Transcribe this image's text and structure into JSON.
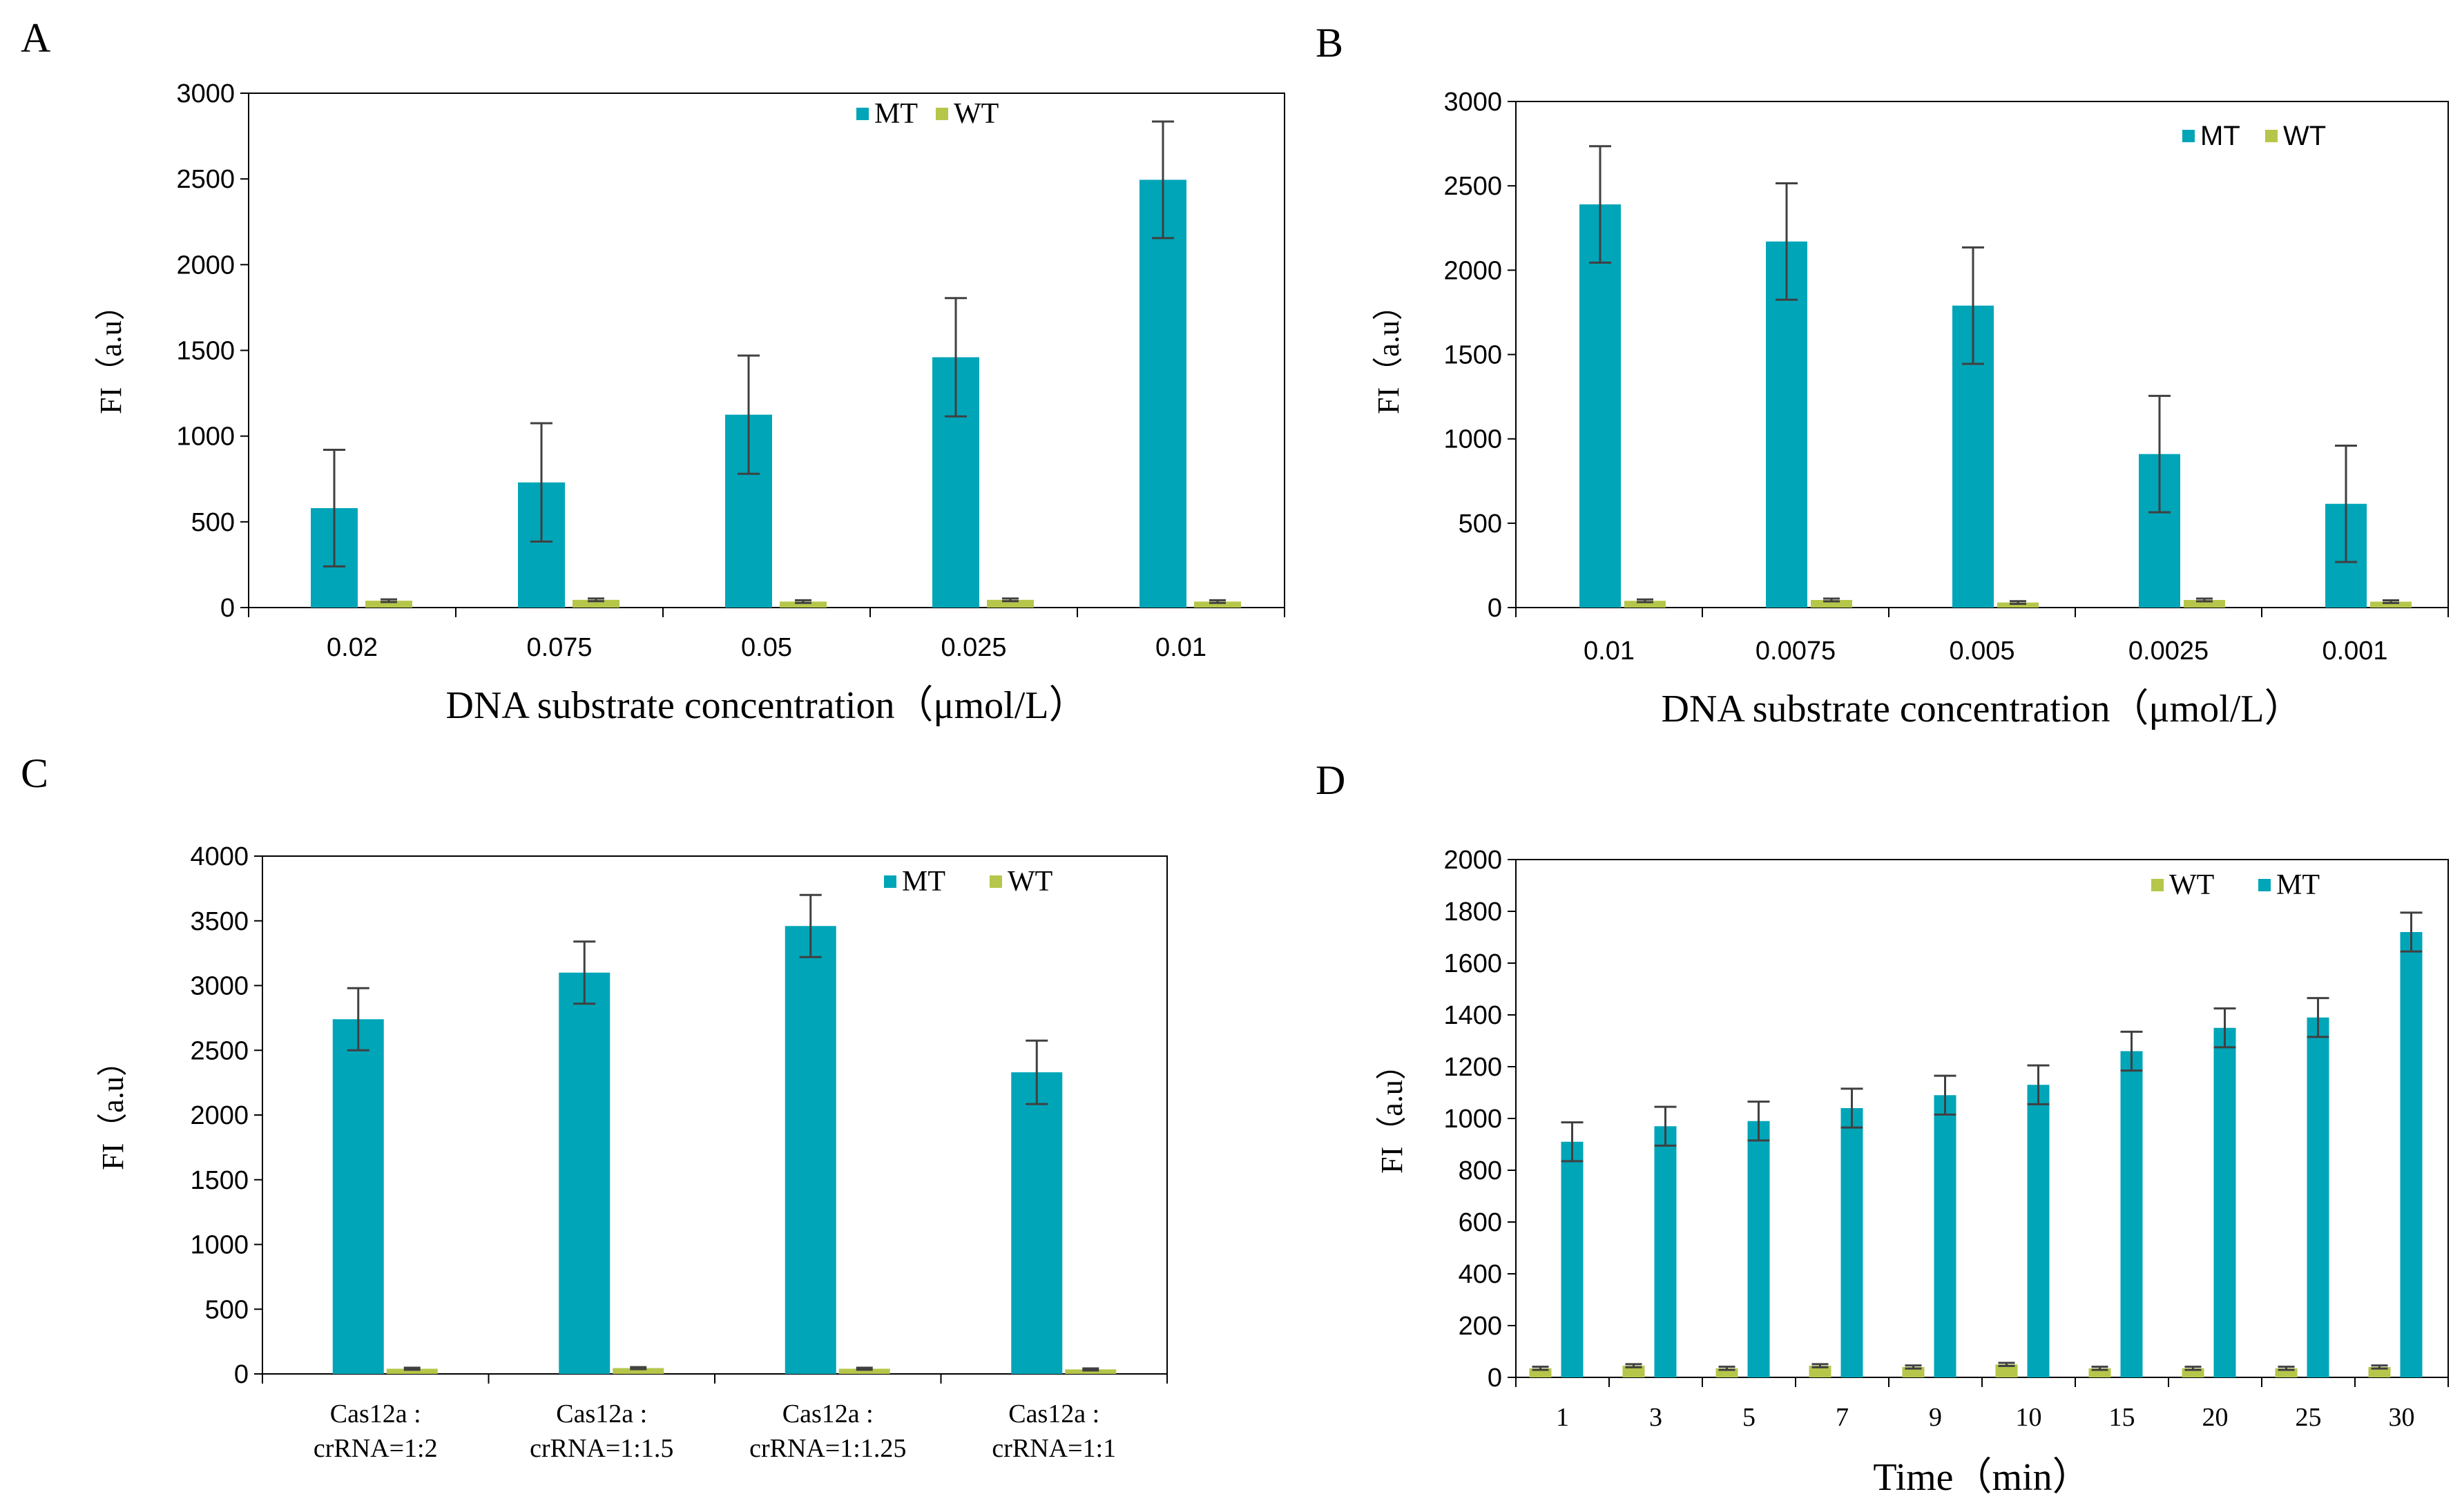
{
  "colors": {
    "mt": "#00A5B8",
    "wt": "#B6C64A",
    "err": "#404040",
    "axis": "#7f7f7f"
  },
  "chart_data": [
    {
      "panel": "A",
      "type": "bar",
      "title": "",
      "xlabel": "DNA substrate  concentration（μmol/L）",
      "ylabel": "FI（a.u）",
      "ylim": [
        0,
        3000
      ],
      "yticks": [
        "0",
        "500",
        "1000",
        "1500",
        "2000",
        "2500",
        "3000"
      ],
      "categories": [
        "0.02",
        "0.075",
        "0.05",
        "0.025",
        "0.01"
      ],
      "legend": [
        "MT",
        "WT"
      ],
      "legend_position": "top-right",
      "series": [
        {
          "name": "MT",
          "values": [
            580,
            730,
            1125,
            1460,
            2495
          ],
          "errors": [
            340,
            345,
            345,
            345,
            340
          ]
        },
        {
          "name": "WT",
          "values": [
            40,
            45,
            35,
            45,
            35
          ],
          "errors": [
            8,
            8,
            8,
            8,
            8
          ]
        }
      ]
    },
    {
      "panel": "B",
      "type": "bar",
      "title": "",
      "xlabel": "DNA substrate  concentration（μmol/L）",
      "ylabel": "FI（a.u）",
      "ylim": [
        0,
        3000
      ],
      "yticks": [
        "0",
        "500",
        "1000",
        "1500",
        "2000",
        "2500",
        "3000"
      ],
      "categories": [
        "0.01",
        "0.0075",
        "0.005",
        "0.0025",
        "0.001"
      ],
      "legend": [
        "MT",
        "WT"
      ],
      "legend_position": "top-right",
      "series": [
        {
          "name": "MT",
          "values": [
            2390,
            2170,
            1790,
            910,
            615
          ],
          "errors": [
            345,
            345,
            345,
            345,
            345
          ]
        },
        {
          "name": "WT",
          "values": [
            40,
            45,
            30,
            45,
            35
          ],
          "errors": [
            8,
            8,
            8,
            8,
            8
          ]
        }
      ]
    },
    {
      "panel": "C",
      "type": "bar",
      "title": "",
      "xlabel": "",
      "ylabel": "FI（a.u）",
      "ylim": [
        0,
        4000
      ],
      "yticks": [
        "0",
        "500",
        "1000",
        "1500",
        "2000",
        "2500",
        "3000",
        "3500",
        "4000"
      ],
      "categories": [
        "Cas12a :|crRNA=1:2",
        "Cas12a :|crRNA=1:1.5",
        "Cas12a :|crRNA=1:1.25",
        "Cas12a :|crRNA=1:1"
      ],
      "legend": [
        "MT",
        "WT"
      ],
      "legend_position": "top-right",
      "series": [
        {
          "name": "MT",
          "values": [
            2740,
            3100,
            3460,
            2330
          ],
          "errors": [
            240,
            240,
            240,
            245
          ]
        },
        {
          "name": "WT",
          "values": [
            40,
            45,
            40,
            35
          ],
          "errors": [
            8,
            8,
            8,
            8
          ]
        }
      ]
    },
    {
      "panel": "D",
      "type": "bar",
      "title": "",
      "xlabel": "Time（min）",
      "ylabel": "FI（a.u）",
      "ylim": [
        0,
        2000
      ],
      "yticks": [
        "0",
        "200",
        "400",
        "600",
        "800",
        "1000",
        "1200",
        "1400",
        "1600",
        "1800",
        "2000"
      ],
      "categories": [
        "1",
        "3",
        "5",
        "7",
        "9",
        "10",
        "15",
        "20",
        "25",
        "30"
      ],
      "legend": [
        "WT",
        "MT"
      ],
      "legend_position": "top-right",
      "series": [
        {
          "name": "WT",
          "values": [
            35,
            45,
            35,
            45,
            40,
            50,
            35,
            35,
            35,
            40
          ],
          "errors": [
            6,
            6,
            6,
            6,
            6,
            6,
            6,
            6,
            6,
            6
          ]
        },
        {
          "name": "MT",
          "values": [
            910,
            970,
            990,
            1040,
            1090,
            1130,
            1260,
            1350,
            1390,
            1720
          ],
          "errors": [
            75,
            75,
            75,
            75,
            75,
            75,
            75,
            75,
            75,
            75
          ]
        }
      ]
    }
  ]
}
